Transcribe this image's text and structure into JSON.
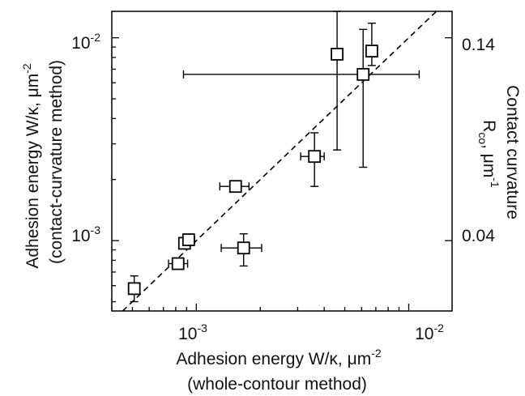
{
  "chart_data": {
    "type": "scatter",
    "title": "",
    "xlabel": {
      "line1": "Adhesion energy  W/κ, μm",
      "line1_exp": "-2",
      "line2": "(whole-contour method)"
    },
    "ylabel": {
      "line1": "Adhesion energy  W/κ, μm",
      "line1_exp": "-2",
      "line2": "(contact-curvature method)"
    },
    "y2label": {
      "line1": "Contact curvature",
      "line2_main": "R",
      "line2_sub": "co",
      "line2_rest": ", μm",
      "line2_exp": "-1"
    },
    "x_scale": "log",
    "y_scale": "log",
    "xlim": [
      0.0004,
      0.016
    ],
    "ylim": [
      0.00045,
      0.0135
    ],
    "x_ticks": [
      {
        "value": 0.001,
        "base": "10",
        "exp": "-3"
      },
      {
        "value": 0.01,
        "base": "10",
        "exp": "-2"
      }
    ],
    "y_ticks": [
      {
        "value": 0.001,
        "base": "10",
        "exp": "-3"
      },
      {
        "value": 0.01,
        "base": "10",
        "exp": "-2"
      }
    ],
    "y2_ticks": [
      {
        "value": 0.04,
        "label": "0.04"
      },
      {
        "value": 0.14,
        "label": "0.14"
      }
    ],
    "reference_line": {
      "style": "dashed",
      "relation": "y = x"
    },
    "grid": false,
    "legend": "none",
    "points": [
      {
        "x": 0.00051,
        "y": 0.00058,
        "xerr": [
          0.00049,
          0.00053
        ],
        "yerr": [
          0.0005,
          0.00067
        ]
      },
      {
        "x": 0.00082,
        "y": 0.00077,
        "xerr": [
          0.00074,
          0.00091
        ],
        "yerr": [
          0.00074,
          0.00081
        ]
      },
      {
        "x": 0.00088,
        "y": 0.00097,
        "xerr": [
          0.00083,
          0.00093
        ],
        "yerr": [
          0.00093,
          0.00101
        ]
      },
      {
        "x": 0.00092,
        "y": 0.00101,
        "xerr": [
          0.00087,
          0.00098
        ],
        "yerr": [
          0.00097,
          0.00106
        ]
      },
      {
        "x": 0.00153,
        "y": 0.00185,
        "xerr": [
          0.00129,
          0.00177
        ],
        "yerr": [
          0.00175,
          0.00193
        ]
      },
      {
        "x": 0.00167,
        "y": 0.00092,
        "xerr": [
          0.00131,
          0.00203
        ],
        "yerr": [
          0.00075,
          0.00108
        ]
      },
      {
        "x": 0.0036,
        "y": 0.0026,
        "xerr": [
          0.0031,
          0.004
        ],
        "yerr": [
          0.00185,
          0.0034
        ]
      },
      {
        "x": 0.0046,
        "y": 0.0083,
        "xerr": [
          0.0045,
          0.0047
        ],
        "yerr": [
          0.0028,
          0.0135
        ]
      },
      {
        "x": 0.0061,
        "y": 0.0066,
        "xerr": [
          0.00087,
          0.0112
        ],
        "yerr": [
          0.0023,
          0.011
        ]
      },
      {
        "x": 0.0067,
        "y": 0.0086,
        "xerr": [
          0.0064,
          0.007
        ],
        "yerr": [
          0.0073,
          0.0118
        ]
      }
    ]
  }
}
